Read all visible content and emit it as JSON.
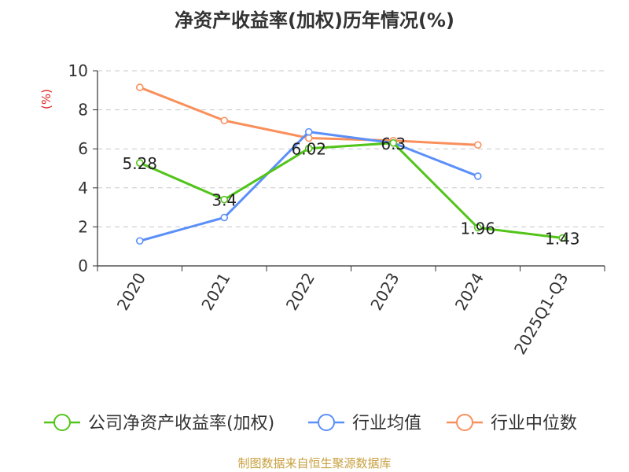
{
  "chart_data": {
    "type": "line",
    "title": "净资产收益率(加权)历年情况(%)",
    "ylabel": "(%)",
    "xlabel": "",
    "categories": [
      "2020",
      "2021",
      "2022",
      "2023",
      "2024",
      "2025Q1-Q3"
    ],
    "ylim": [
      0,
      10
    ],
    "yticks": [
      0,
      2,
      4,
      6,
      8,
      10
    ],
    "grid": true,
    "legend_position": "bottom",
    "series": [
      {
        "name": "公司净资产收益率(加权)",
        "color": "#52c41a",
        "values": [
          5.28,
          3.4,
          6.02,
          6.3,
          1.96,
          1.43
        ],
        "labels": [
          "5.28",
          "3.4",
          "6.02",
          "6.3",
          "1.96",
          "1.43"
        ]
      },
      {
        "name": "行业均值",
        "color": "#5b8ff9",
        "values": [
          1.28,
          2.48,
          6.87,
          6.3,
          4.6,
          null
        ]
      },
      {
        "name": "行业中位数",
        "color": "#f9905c",
        "values": [
          9.15,
          7.45,
          6.55,
          6.42,
          6.2,
          null
        ]
      }
    ]
  },
  "ylabel_color": "#e02020",
  "footer": {
    "text": "制图数据来自恒生聚源数据库",
    "color": "#c8a040"
  }
}
